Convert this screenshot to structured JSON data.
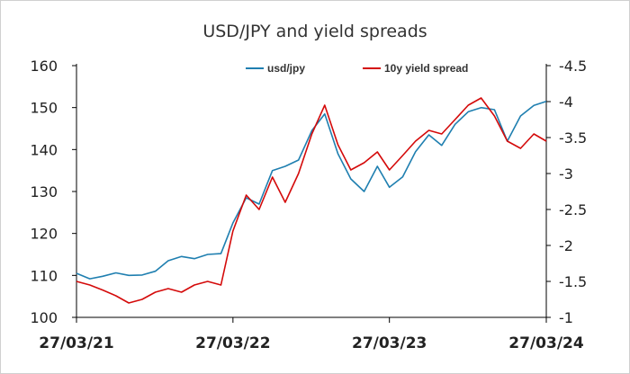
{
  "colors": {
    "usdjpy": "#1f7fb0",
    "spread": "#d40a0a",
    "axis": "#000000"
  },
  "chart_data": {
    "type": "line",
    "title": "USD/JPY and yield spreads",
    "legend_position": "top",
    "grid": false,
    "x": [
      "27/03/21",
      "27/04/21",
      "27/05/21",
      "27/06/21",
      "27/07/21",
      "27/08/21",
      "27/09/21",
      "27/10/21",
      "27/11/21",
      "27/12/21",
      "27/01/22",
      "27/02/22",
      "27/03/22",
      "27/04/22",
      "27/05/22",
      "27/06/22",
      "27/07/22",
      "27/08/22",
      "27/09/22",
      "27/10/22",
      "27/11/22",
      "27/12/22",
      "27/01/23",
      "27/02/23",
      "27/03/23",
      "27/04/23",
      "27/05/23",
      "27/06/23",
      "27/07/23",
      "27/08/23",
      "27/09/23",
      "27/10/23",
      "27/11/23",
      "27/12/23",
      "27/01/24",
      "27/02/24",
      "27/03/24"
    ],
    "x_ticks": [
      "27/03/21",
      "27/03/22",
      "27/03/23",
      "27/03/24"
    ],
    "left_axis": {
      "ylim": [
        100,
        160
      ],
      "ticks": [
        "100",
        "110",
        "120",
        "130",
        "140",
        "150",
        "160"
      ]
    },
    "right_axis": {
      "ylim": [
        -1,
        -4.5
      ],
      "ticks": [
        "-1",
        "-1.5",
        "-2",
        "-2.5",
        "-3",
        "-3.5",
        "-4",
        "-4.5"
      ]
    },
    "series": [
      {
        "name": "usd/jpy",
        "axis": "left",
        "values": [
          110.5,
          109.2,
          109.8,
          110.6,
          110.0,
          110.1,
          111.0,
          113.5,
          114.5,
          114.0,
          115.0,
          115.2,
          122.5,
          128.5,
          127.0,
          135.0,
          136.0,
          137.5,
          144.5,
          148.5,
          139.0,
          133.0,
          130.0,
          136.0,
          131.0,
          133.5,
          139.5,
          143.5,
          141.0,
          146.0,
          149.0,
          150.0,
          149.5,
          142.0,
          148.0,
          150.5,
          151.5
        ]
      },
      {
        "name": "10y yield spread",
        "axis": "right",
        "values": [
          -1.5,
          -1.45,
          -1.38,
          -1.3,
          -1.2,
          -1.25,
          -1.35,
          -1.4,
          -1.35,
          -1.45,
          -1.5,
          -1.45,
          -2.2,
          -2.7,
          -2.5,
          -2.95,
          -2.6,
          -3.0,
          -3.55,
          -3.95,
          -3.4,
          -3.05,
          -3.15,
          -3.3,
          -3.05,
          -3.25,
          -3.45,
          -3.6,
          -3.55,
          -3.75,
          -3.95,
          -4.05,
          -3.8,
          -3.45,
          -3.35,
          -3.55,
          -3.45
        ]
      }
    ]
  }
}
